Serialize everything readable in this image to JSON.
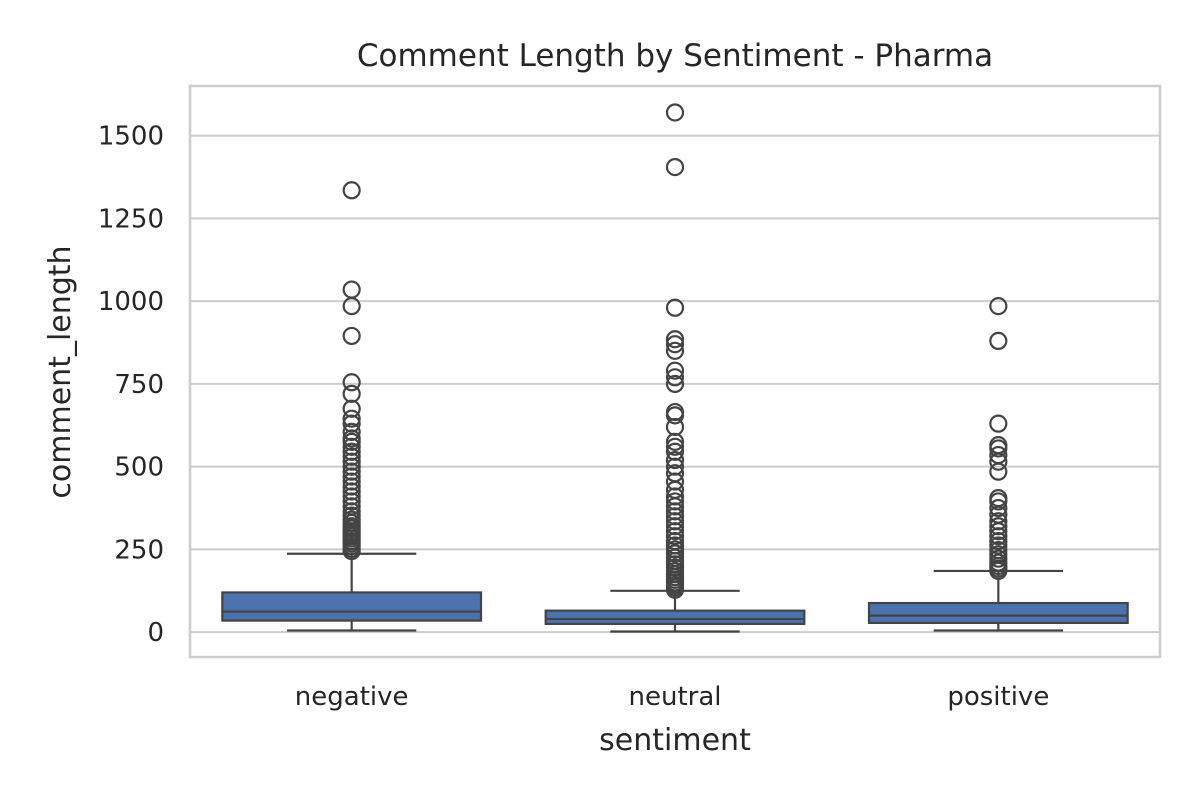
{
  "chart_data": {
    "type": "box",
    "title": "Comment Length by Sentiment - Pharma",
    "xlabel": "sentiment",
    "ylabel": "comment_length",
    "ylim": [
      -75,
      1650
    ],
    "yticks": [
      0,
      250,
      500,
      750,
      1000,
      1250,
      1500
    ],
    "grid": true,
    "box_color": "#4c72b0",
    "line_color": "#444444",
    "categories": [
      "negative",
      "neutral",
      "positive"
    ],
    "boxes": [
      {
        "category": "negative",
        "whisker_low": 5,
        "q1": 35,
        "median": 62,
        "q3": 120,
        "whisker_high": 237,
        "fliers": [
          245,
          252,
          260,
          268,
          275,
          283,
          290,
          298,
          305,
          313,
          320,
          330,
          340,
          352,
          365,
          380,
          395,
          410,
          425,
          440,
          455,
          470,
          485,
          500,
          515,
          530,
          545,
          560,
          575,
          585,
          605,
          630,
          645,
          675,
          720,
          755,
          895,
          985,
          1035,
          1335
        ]
      },
      {
        "category": "neutral",
        "whisker_low": 2,
        "q1": 25,
        "median": 40,
        "q3": 65,
        "whisker_high": 125,
        "fliers": [
          128,
          135,
          142,
          150,
          158,
          166,
          175,
          185,
          195,
          205,
          215,
          225,
          238,
          250,
          262,
          275,
          290,
          305,
          320,
          335,
          350,
          365,
          380,
          395,
          410,
          430,
          455,
          480,
          500,
          520,
          545,
          560,
          575,
          620,
          655,
          665,
          750,
          770,
          790,
          850,
          870,
          885,
          980,
          1405,
          1570
        ]
      },
      {
        "category": "positive",
        "whisker_low": 5,
        "q1": 28,
        "median": 50,
        "q3": 88,
        "whisker_high": 185,
        "fliers": [
          185,
          192,
          200,
          210,
          222,
          235,
          248,
          262,
          275,
          290,
          305,
          320,
          335,
          355,
          375,
          395,
          405,
          485,
          515,
          535,
          555,
          565,
          630,
          880,
          985
        ]
      }
    ]
  }
}
